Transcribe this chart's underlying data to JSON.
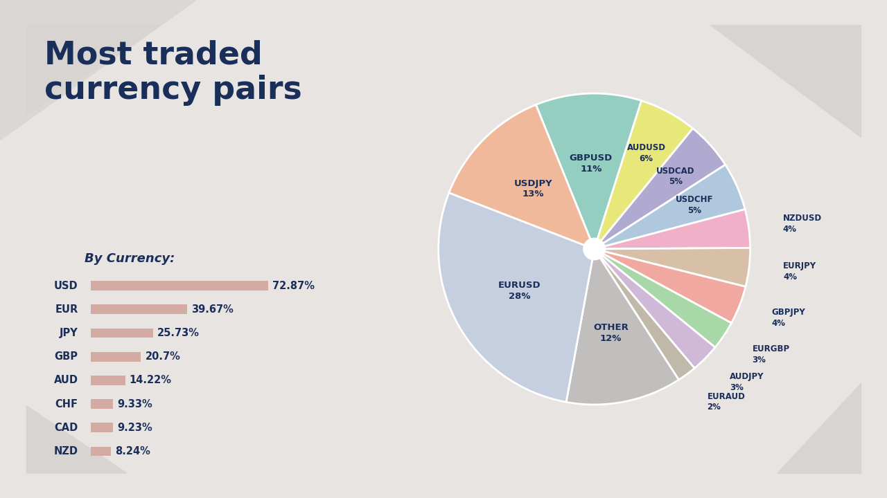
{
  "title": "Most traded\ncurrency pairs",
  "subtitle": "By Currency:",
  "background_color": "#e8e4e2",
  "card_color": "#f2efee",
  "title_color": "#1a2e5a",
  "text_color": "#1a2e5a",
  "pie_slices": [
    {
      "label": "EURUSD",
      "pct": 28,
      "color": "#c5cfe0"
    },
    {
      "label": "USDJPY",
      "pct": 13,
      "color": "#f0b99b"
    },
    {
      "label": "GBPUSD",
      "pct": 11,
      "color": "#93cec0"
    },
    {
      "label": "AUDUSD",
      "pct": 6,
      "color": "#e8e87a"
    },
    {
      "label": "USDCAD",
      "pct": 5,
      "color": "#b0aad0"
    },
    {
      "label": "USDCHF",
      "pct": 5,
      "color": "#b0c8de"
    },
    {
      "label": "NZDUSD",
      "pct": 4,
      "color": "#f0b0c8"
    },
    {
      "label": "EURJPY",
      "pct": 4,
      "color": "#d8bfa8"
    },
    {
      "label": "GBPJPY",
      "pct": 4,
      "color": "#f0a8a0"
    },
    {
      "label": "EURGBP",
      "pct": 3,
      "color": "#a8d8a8"
    },
    {
      "label": "AUDJPY",
      "pct": 3,
      "color": "#d0b8d8"
    },
    {
      "label": "EURAUD",
      "pct": 2,
      "color": "#c0b8a8"
    },
    {
      "label": "OTHER",
      "pct": 12,
      "color": "#c0bfbe"
    }
  ],
  "bar_data": [
    {
      "label": "NZD",
      "value": 8.24
    },
    {
      "label": "CAD",
      "value": 9.23
    },
    {
      "label": "CHF",
      "value": 9.33
    },
    {
      "label": "AUD",
      "value": 14.22
    },
    {
      "label": "GBP",
      "value": 20.7
    },
    {
      "label": "JPY",
      "value": 25.73
    },
    {
      "label": "EUR",
      "value": 39.67
    },
    {
      "label": "USD",
      "value": 72.87
    }
  ],
  "bar_color": "#d4aba3",
  "bar_label_color": "#1a2e5a",
  "max_bar_value": 72.87
}
